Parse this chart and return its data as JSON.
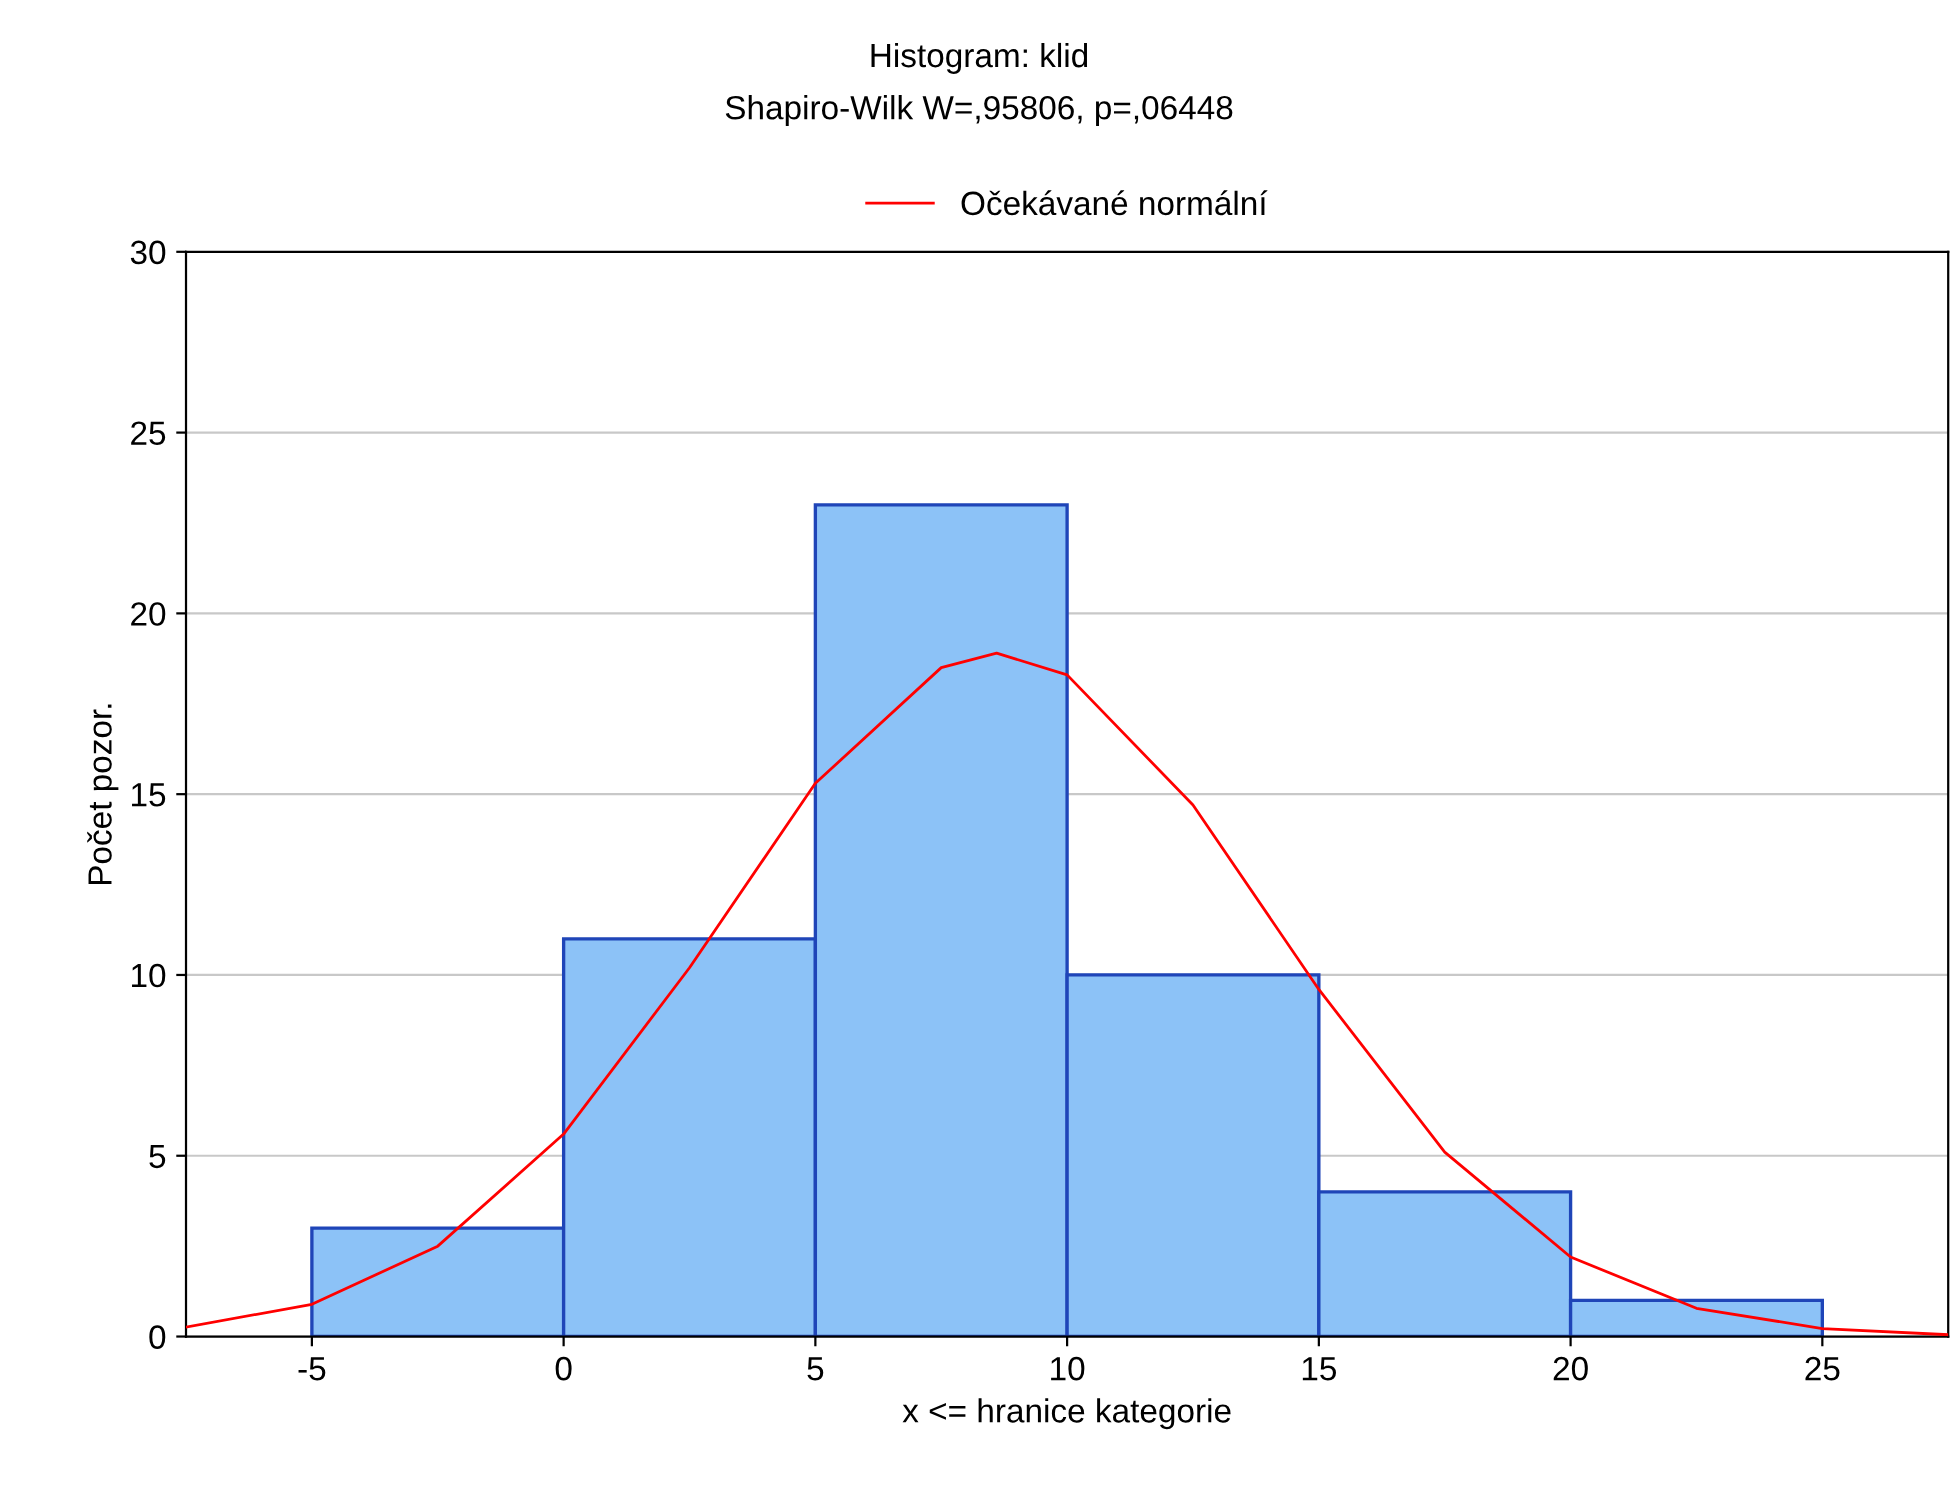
{
  "chart_data": {
    "type": "histogram",
    "title": "Histogram: klid",
    "subtitle": "Shapiro-Wilk W=,95806, p=,06448",
    "xlabel": "x <= hranice kategorie",
    "ylabel": "Počet pozor.",
    "bins": [
      -5,
      0,
      5,
      10,
      15,
      20,
      25
    ],
    "values": [
      3,
      11,
      23,
      10,
      4,
      1
    ],
    "color": "#8cc2f7",
    "series": [
      {
        "type": "line",
        "name": "Očekávané normální",
        "color": "#ff0000",
        "x": [
          -7.5,
          -5,
          -2.5,
          0,
          2.5,
          5,
          7.5,
          8.6,
          10,
          12.5,
          15,
          17.5,
          20,
          22.5,
          25,
          27.5
        ],
        "values": [
          0.26,
          0.89,
          2.5,
          5.6,
          10.2,
          15.3,
          18.5,
          18.9,
          18.3,
          14.7,
          9.6,
          5.1,
          2.2,
          0.78,
          0.22,
          0.05
        ]
      }
    ],
    "xlim": [
      -7.5,
      27.5
    ],
    "ylim": [
      0,
      30
    ],
    "xticks": [
      -5,
      0,
      5,
      10,
      15,
      20,
      25
    ],
    "yticks": [
      0,
      5,
      10,
      15,
      20,
      25,
      30
    ],
    "grid": "y",
    "legend": "top",
    "marker": "none",
    "line_style": "solid"
  }
}
